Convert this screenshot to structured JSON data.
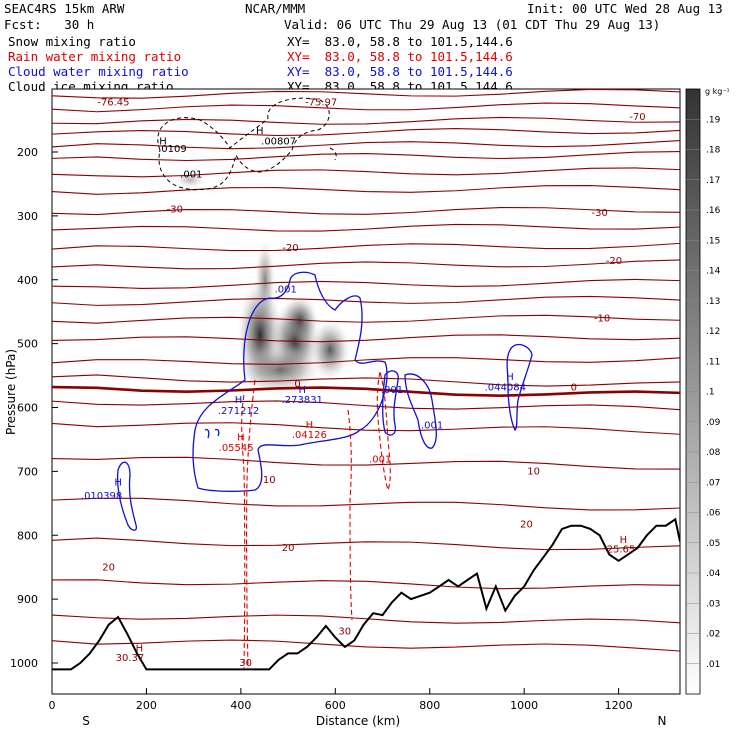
{
  "header": {
    "model": "SEAC4RS 15km ARW",
    "fcst": "Fcst:   30 h",
    "org": "NCAR/MMM",
    "init": "Init: 00 UTC Wed 28 Aug 13",
    "valid": "Valid: 06 UTC Thu 29 Aug 13 (01 CDT Thu 29 Aug 13)"
  },
  "fields": [
    {
      "label": "Snow mixing ratio",
      "xy": "XY=  83.0, 58.8 to 101.5,144.6",
      "color": "#000000"
    },
    {
      "label": "Rain water mixing ratio",
      "xy": "XY=  83.0, 58.8 to 101.5,144.6",
      "color": "#e00000"
    },
    {
      "label": "Cloud water mixing ratio",
      "xy": "XY=  83.0, 58.8 to 101.5,144.6",
      "color": "#1010d0"
    },
    {
      "label": "Cloud ice mixing ratio",
      "xy": "XY=  83.0, 58.8 to 101.5,144.6",
      "color": "#000000"
    }
  ],
  "chart_data": {
    "type": "cross-section",
    "xlabel": "Distance (km)",
    "ylabel": "Pressure (hPa)",
    "xlim": [
      0,
      1330
    ],
    "ylim": [
      1050,
      100
    ],
    "x_ticks": [
      "0",
      "200",
      "400",
      "600",
      "800",
      "1000",
      "1200"
    ],
    "y_ticks": [
      "200",
      "300",
      "400",
      "500",
      "600",
      "700",
      "800",
      "900",
      "1000"
    ],
    "endpoint_labels": {
      "left": "S",
      "right": "N"
    },
    "colorbar": {
      "unit": "g kg⁻¹",
      "labels": [
        ".01",
        ".02",
        ".03",
        ".04",
        ".05",
        ".06",
        ".07",
        ".08",
        ".09",
        ".1",
        ".11",
        ".12",
        ".13",
        ".14",
        ".15",
        ".16",
        ".17",
        ".18",
        ".19"
      ]
    },
    "temperature_contour_labels": [
      {
        "text": "-70",
        "x": 1240,
        "p": 150
      },
      {
        "text": "-30",
        "x": 260,
        "p": 295
      },
      {
        "text": "-30",
        "x": 1160,
        "p": 300
      },
      {
        "text": "-20",
        "x": 505,
        "p": 355
      },
      {
        "text": "-20",
        "x": 1190,
        "p": 375
      },
      {
        "text": "-10",
        "x": 1165,
        "p": 465
      },
      {
        "text": "0",
        "x": 520,
        "p": 568
      },
      {
        "text": "0",
        "x": 1105,
        "p": 573
      },
      {
        "text": "10",
        "x": 460,
        "p": 718
      },
      {
        "text": "10",
        "x": 1020,
        "p": 705
      },
      {
        "text": "20",
        "x": 1005,
        "p": 788
      },
      {
        "text": "20",
        "x": 500,
        "p": 825
      },
      {
        "text": "20",
        "x": 120,
        "p": 855
      },
      {
        "text": "30",
        "x": 620,
        "p": 955
      },
      {
        "text": "30",
        "x": 410,
        "p": 1005
      }
    ],
    "min_max_labels": [
      {
        "text": "-76.45",
        "x": 130,
        "p": 127,
        "color": "#8b0000"
      },
      {
        "text": "-75.97",
        "x": 570,
        "p": 127,
        "color": "#8b0000"
      },
      {
        "text": ".0109",
        "x": 255,
        "p": 200,
        "color": "#000000"
      },
      {
        "text": ".00807",
        "x": 480,
        "p": 188,
        "color": "#000000"
      },
      {
        "text": ".001",
        "x": 295,
        "p": 240,
        "color": "#000000"
      },
      {
        "text": ".001",
        "x": 495,
        "p": 420,
        "color": "#1010d0"
      },
      {
        "text": ".271212",
        "x": 395,
        "p": 610,
        "color": "#1010d0"
      },
      {
        "text": ".273831",
        "x": 530,
        "p": 593,
        "color": "#1010d0"
      },
      {
        "text": ".001",
        "x": 720,
        "p": 577,
        "color": "#1010d0"
      },
      {
        "text": ".001",
        "x": 805,
        "p": 633,
        "color": "#1010d0"
      },
      {
        "text": ".044084",
        "x": 960,
        "p": 573,
        "color": "#1010d0"
      },
      {
        "text": ".010398",
        "x": 105,
        "p": 743,
        "color": "#1010d0"
      },
      {
        "text": ".05545",
        "x": 390,
        "p": 668,
        "color": "#e00000"
      },
      {
        "text": ".04126",
        "x": 545,
        "p": 648,
        "color": "#e00000"
      },
      {
        "text": ".001",
        "x": 695,
        "p": 686,
        "color": "#e00000"
      },
      {
        "text": "30.37",
        "x": 165,
        "p": 997,
        "color": "#8b0000"
      },
      {
        "text": "25.65",
        "x": 1205,
        "p": 827,
        "color": "#8b0000"
      }
    ],
    "max_markers": [
      {
        "x": 140,
        "p": 722,
        "color": "#1010d0"
      },
      {
        "x": 395,
        "p": 593,
        "color": "#1010d0"
      },
      {
        "x": 530,
        "p": 577,
        "color": "#1010d0"
      },
      {
        "x": 970,
        "p": 557,
        "color": "#1010d0"
      },
      {
        "x": 400,
        "p": 652,
        "color": "#e00000"
      },
      {
        "x": 545,
        "p": 632,
        "color": "#e00000"
      },
      {
        "x": 235,
        "p": 188,
        "color": "#000000"
      },
      {
        "x": 440,
        "p": 172,
        "color": "#000000"
      },
      {
        "x": 185,
        "p": 982,
        "color": "#8b0000"
      },
      {
        "x": 1210,
        "p": 812,
        "color": "#8b0000"
      }
    ],
    "terrain_surface": {
      "x": [
        0,
        20,
        40,
        60,
        80,
        100,
        120,
        140,
        160,
        180,
        200,
        260,
        320,
        400,
        460,
        480,
        500,
        520,
        540,
        560,
        580,
        600,
        620,
        640,
        660,
        680,
        700,
        720,
        740,
        760,
        780,
        800,
        820,
        840,
        860,
        880,
        900,
        920,
        940,
        960,
        980,
        1000,
        1020,
        1040,
        1060,
        1080,
        1100,
        1120,
        1140,
        1160,
        1180,
        1200,
        1220,
        1240,
        1260,
        1280,
        1300,
        1320,
        1330
      ],
      "p": [
        1010,
        1010,
        1010,
        1000,
        985,
        965,
        940,
        928,
        955,
        985,
        1010,
        1010,
        1010,
        1010,
        1010,
        995,
        985,
        985,
        975,
        960,
        942,
        960,
        975,
        965,
        940,
        922,
        925,
        905,
        890,
        900,
        895,
        890,
        880,
        870,
        880,
        870,
        860,
        915,
        880,
        918,
        895,
        880,
        855,
        835,
        815,
        790,
        785,
        785,
        790,
        800,
        830,
        840,
        830,
        820,
        800,
        785,
        785,
        775,
        810
      ]
    },
    "isotherms_hpa_at_x0": [
      112,
      133,
      155,
      172,
      192,
      210,
      235,
      262,
      296,
      322,
      352,
      380,
      410,
      436,
      465,
      495,
      530,
      552,
      568,
      590,
      625,
      680,
      745,
      808,
      870,
      925,
      965
    ]
  }
}
